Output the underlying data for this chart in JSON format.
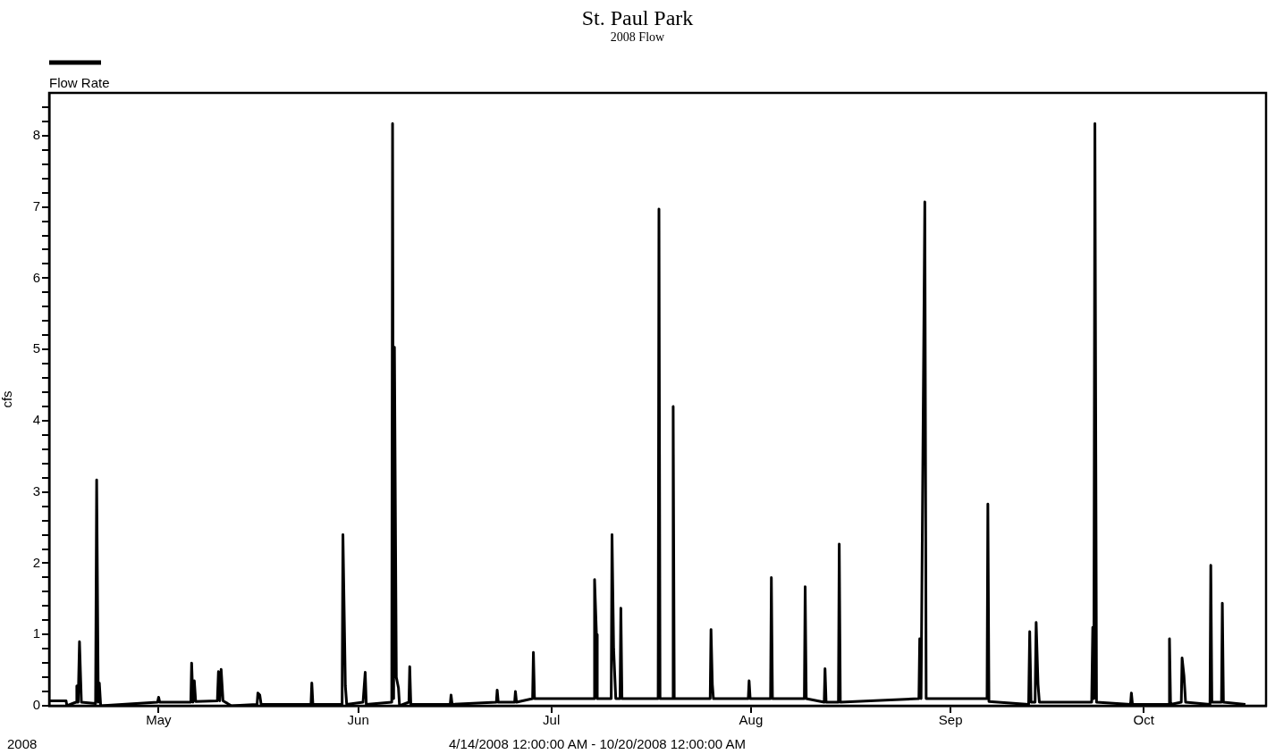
{
  "chart_data": {
    "type": "line",
    "title": "St. Paul Park",
    "subtitle": "2008 Flow",
    "xlabel": "4/14/2008 12:00:00 AM - 10/20/2008 12:00:00 AM",
    "ylabel": "cfs",
    "annotations": [
      "2008"
    ],
    "x": [
      "2008-04-14T00:00",
      "2008-04-16T15:00",
      "2008-04-16T18:00",
      "2008-04-18T04:00",
      "2008-04-18T07:00",
      "2008-04-18T12:00",
      "2008-04-18T17:00",
      "2008-04-19T00:00",
      "2008-04-21T05:00",
      "2008-04-21T09:00",
      "2008-04-21T15:00",
      "2008-04-21T19:00",
      "2008-04-22T00:00",
      "2008-04-30T20:00",
      "2008-05-01T00:00",
      "2008-05-01T04:00",
      "2008-05-06T00:00",
      "2008-05-06T03:00",
      "2008-05-06T08:00",
      "2008-05-06T13:00",
      "2008-05-06T18:00",
      "2008-05-10T03:00",
      "2008-05-10T07:00",
      "2008-05-10T12:00",
      "2008-05-10T17:00",
      "2008-05-11T00:00",
      "2008-05-12T07:00",
      "2008-05-16T07:00",
      "2008-05-16T10:00",
      "2008-05-16T17:00",
      "2008-05-16T22:00",
      "2008-05-24T16:00",
      "2008-05-24T19:00",
      "2008-05-24T23:00",
      "2008-05-29T12:00",
      "2008-05-29T15:00",
      "2008-05-30T00:00",
      "2008-05-30T05:00",
      "2008-06-01T18:00",
      "2008-06-02T02:00",
      "2008-06-02T06:00",
      "2008-06-06T05:00",
      "2008-06-06T08:00",
      "2008-06-06T12:00",
      "2008-06-06T15:00",
      "2008-06-06T22:00",
      "2008-06-07T06:00",
      "2008-06-07T10:00",
      "2008-06-08T21:00",
      "2008-06-09T00:00",
      "2008-06-09T04:00",
      "2008-06-15T07:00",
      "2008-06-15T10:00",
      "2008-06-15T14:00",
      "2008-06-22T11:00",
      "2008-06-22T14:00",
      "2008-06-22T18:00",
      "2008-06-25T07:00",
      "2008-06-25T10:00",
      "2008-06-25T14:00",
      "2008-06-28T02:00",
      "2008-06-28T05:00",
      "2008-06-28T09:00",
      "2008-07-07T14:00",
      "2008-07-07T17:00",
      "2008-07-08T00:00",
      "2008-07-08T03:00",
      "2008-07-10T07:00",
      "2008-07-10T10:00",
      "2008-07-10T16:00",
      "2008-07-11T00:00",
      "2008-07-11T16:00",
      "2008-07-11T19:00",
      "2008-07-11T23:00",
      "2008-07-17T14:00",
      "2008-07-17T17:00",
      "2008-07-17T21:00",
      "2008-07-19T19:00",
      "2008-07-19T22:00",
      "2008-07-20T02:00",
      "2008-07-25T16:00",
      "2008-07-25T19:00",
      "2008-07-26T00:00",
      "2008-07-26T04:00",
      "2008-07-31T14:00",
      "2008-07-31T17:00",
      "2008-07-31T21:00",
      "2008-08-04T01:00",
      "2008-08-04T04:00",
      "2008-08-04T08:00",
      "2008-08-09T07:00",
      "2008-08-09T10:00",
      "2008-08-09T14:00",
      "2008-08-12T09:00",
      "2008-08-12T12:00",
      "2008-08-12T16:00",
      "2008-08-14T14:00",
      "2008-08-14T17:00",
      "2008-08-14T21:00",
      "2008-08-27T02:00",
      "2008-08-27T05:00",
      "2008-08-27T10:00",
      "2008-08-28T00:00",
      "2008-08-28T05:00",
      "2008-09-06T16:00",
      "2008-09-06T19:00",
      "2008-09-06T23:00",
      "2008-09-13T03:00",
      "2008-09-13T07:00",
      "2008-09-13T12:00",
      "2008-09-14T03:00",
      "2008-09-14T07:00",
      "2008-09-14T14:00",
      "2008-09-14T19:00",
      "2008-09-22T22:00",
      "2008-09-23T02:00",
      "2008-09-23T06:00",
      "2008-09-23T10:00",
      "2008-09-23T16:00",
      "2008-09-28T23:00",
      "2008-09-29T02:00",
      "2008-09-29T06:00",
      "2008-10-04T21:00",
      "2008-10-05T00:00",
      "2008-10-05T04:00",
      "2008-10-06T20:00",
      "2008-10-06T23:00",
      "2008-10-07T06:00",
      "2008-10-07T12:00",
      "2008-10-11T07:00",
      "2008-10-11T10:00",
      "2008-10-11T14:00",
      "2008-10-13T02:00",
      "2008-10-13T05:00",
      "2008-10-13T09:00",
      "2008-10-16T19:00"
    ],
    "series": [
      {
        "name": "Flow Rate",
        "color": "#000000",
        "values": [
          0.07,
          0.07,
          0,
          0.05,
          0.28,
          0.05,
          0.9,
          0.05,
          0.03,
          3.17,
          0.05,
          0.32,
          0,
          0.05,
          0.12,
          0.05,
          0.05,
          0.6,
          0.05,
          0.35,
          0.06,
          0.07,
          0.48,
          0.07,
          0.51,
          0.07,
          0,
          0.02,
          0.18,
          0.15,
          0.02,
          0.02,
          0.32,
          0.02,
          0.02,
          2.4,
          0.28,
          0.02,
          0.05,
          0.47,
          0.02,
          0.05,
          8.17,
          0.1,
          5.03,
          0.4,
          0.25,
          0,
          0.05,
          0.55,
          0.02,
          0.02,
          0.15,
          0.02,
          0.05,
          0.22,
          0.05,
          0.05,
          0.2,
          0.05,
          0.1,
          0.75,
          0.1,
          0.1,
          1.77,
          1.0,
          0.1,
          0.1,
          2.4,
          0.8,
          0.1,
          0.1,
          1.37,
          0.1,
          0.1,
          6.97,
          0.1,
          0.1,
          4.2,
          0.1,
          0.1,
          1.07,
          0.3,
          0.1,
          0.1,
          0.35,
          0.1,
          0.1,
          1.8,
          0.1,
          0.1,
          1.67,
          0.1,
          0.05,
          0.52,
          0.05,
          0.05,
          2.27,
          0.05,
          0.1,
          0.94,
          0.1,
          7.07,
          0.1,
          0.1,
          2.83,
          0.06,
          0.02,
          1.04,
          0.05,
          0.05,
          1.17,
          0.3,
          0.05,
          0.05,
          1.1,
          0.1,
          8.17,
          0.05,
          0.02,
          0.18,
          0.02,
          0.02,
          0.94,
          0.02,
          0.05,
          0.67,
          0.42,
          0.05,
          0.02,
          1.97,
          0.05,
          0.05,
          1.44,
          0.05,
          0.02
        ]
      }
    ],
    "xlim": [
      "2008-04-14",
      "2008-10-20"
    ],
    "xticks": [
      {
        "value": "2008-05-01",
        "label": "May"
      },
      {
        "value": "2008-06-01",
        "label": "Jun"
      },
      {
        "value": "2008-07-01",
        "label": "Jul"
      },
      {
        "value": "2008-08-01",
        "label": "Aug"
      },
      {
        "value": "2008-09-01",
        "label": "Sep"
      },
      {
        "value": "2008-10-01",
        "label": "Oct"
      }
    ],
    "ylim": [
      0,
      8.6
    ],
    "yticks": [
      0,
      {
        "value": 0.2,
        "label": null
      },
      {
        "value": 0.4,
        "label": null
      },
      {
        "value": 0.6,
        "label": null
      },
      {
        "value": 0.8,
        "label": null
      },
      1,
      {
        "value": 1.2,
        "label": null
      },
      {
        "value": 1.4,
        "label": null
      },
      {
        "value": 1.6,
        "label": null
      },
      {
        "value": 1.8,
        "label": null
      },
      2,
      {
        "value": 2.2,
        "label": null
      },
      {
        "value": 2.4,
        "label": null
      },
      {
        "value": 2.6,
        "label": null
      },
      {
        "value": 2.8,
        "label": null
      },
      3,
      {
        "value": 3.2,
        "label": null
      },
      {
        "value": 3.4,
        "label": null
      },
      {
        "value": 3.6,
        "label": null
      },
      {
        "value": 3.8,
        "label": null
      },
      4,
      {
        "value": 4.2,
        "label": null
      },
      {
        "value": 4.4,
        "label": null
      },
      {
        "value": 4.6,
        "label": null
      },
      {
        "value": 4.8,
        "label": null
      },
      5,
      {
        "value": 5.2,
        "label": null
      },
      {
        "value": 5.4,
        "label": null
      },
      {
        "value": 5.6,
        "label": null
      },
      {
        "value": 5.8,
        "label": null
      },
      6,
      {
        "value": 6.2,
        "label": null
      },
      {
        "value": 6.4,
        "label": null
      },
      {
        "value": 6.6,
        "label": null
      },
      {
        "value": 6.8,
        "label": null
      },
      7,
      {
        "value": 7.2,
        "label": null
      },
      {
        "value": 7.4,
        "label": null
      },
      {
        "value": 7.6,
        "label": null
      },
      {
        "value": 7.8,
        "label": null
      },
      8,
      {
        "value": 8.2,
        "label": null
      },
      {
        "value": 8.4,
        "label": null
      }
    ],
    "grid": false,
    "legend": "top left",
    "marker": "none",
    "line_style": "solid"
  }
}
